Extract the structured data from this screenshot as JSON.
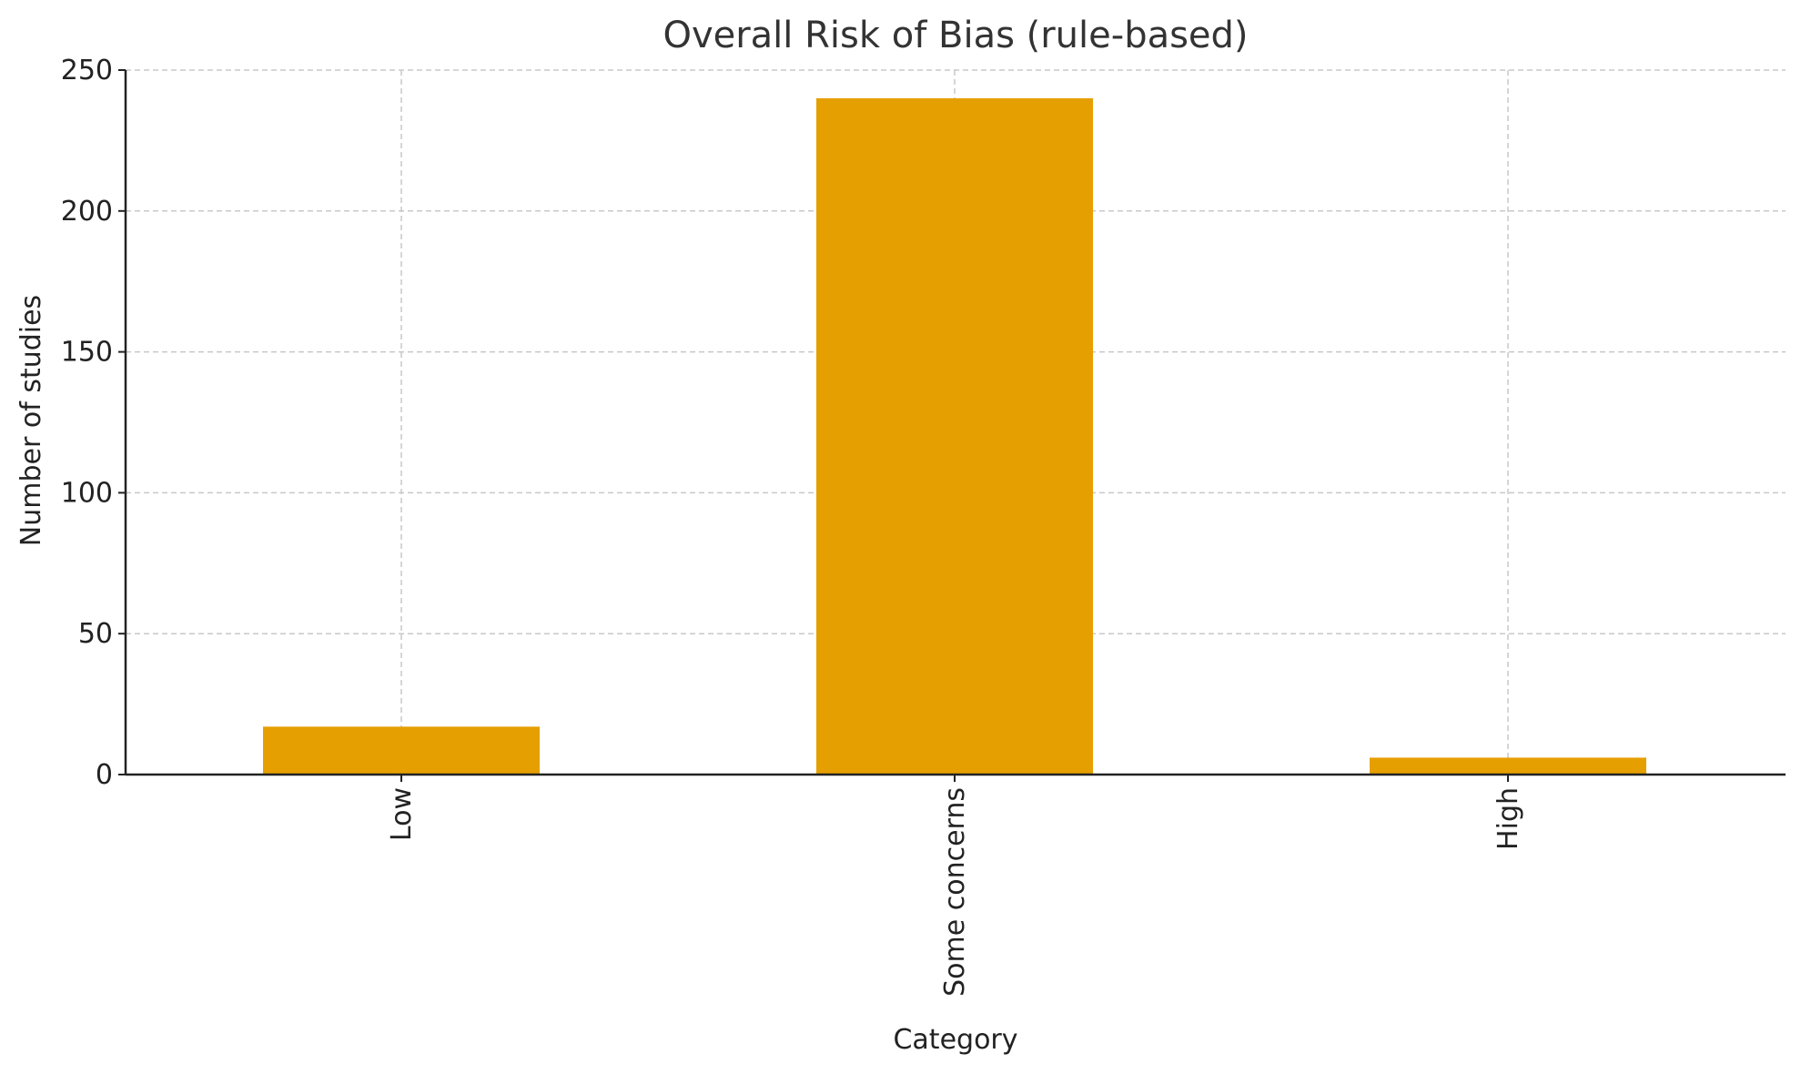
{
  "chart_data": {
    "type": "bar",
    "title": "Overall Risk of Bias (rule-based)",
    "xlabel": "Category",
    "ylabel": "Number of studies",
    "categories": [
      "Low",
      "Some concerns",
      "High"
    ],
    "values": [
      17,
      240,
      6
    ],
    "ylim": [
      0,
      250
    ],
    "yticks": [
      0,
      50,
      100,
      150,
      200,
      250
    ],
    "ytick_labels": [
      "0",
      "50",
      "100",
      "150",
      "200",
      "250"
    ],
    "grid": true,
    "bar_color": "#E69F00",
    "legend": "none"
  }
}
